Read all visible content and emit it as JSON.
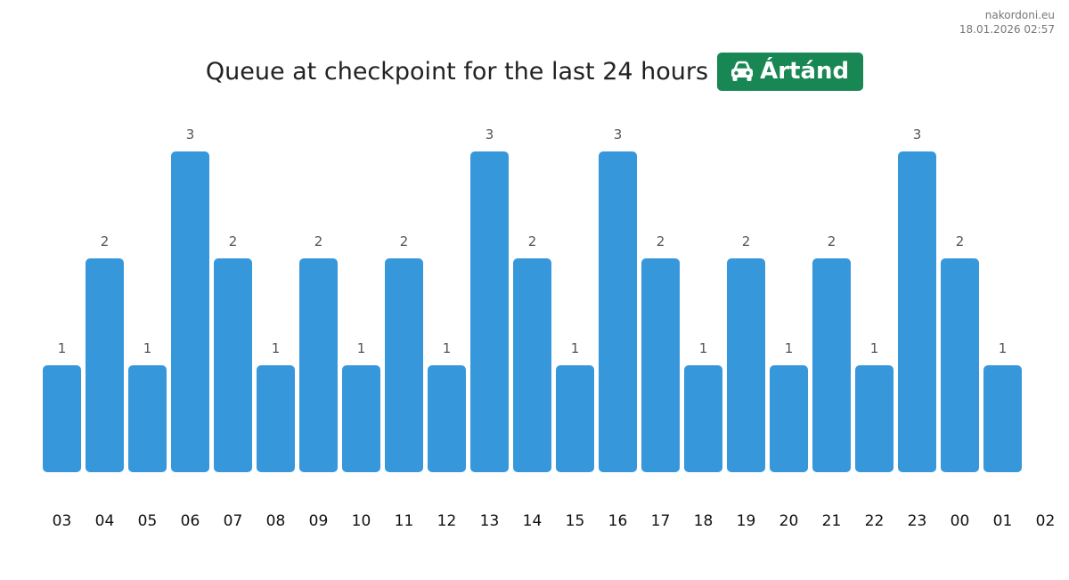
{
  "watermark": {
    "site": "nakordoni.eu",
    "timestamp": "18.01.2026 02:57"
  },
  "header": {
    "title": "Queue at checkpoint for the last 24 hours",
    "badge_label": "Ártánd",
    "badge_icon": "car-icon",
    "badge_color": "#198754"
  },
  "chart_data": {
    "type": "bar",
    "title": "Queue at checkpoint for the last 24 hours",
    "xlabel": "",
    "ylabel": "",
    "ylim": [
      0,
      3
    ],
    "bar_color": "#3797db",
    "grid": false,
    "legend": "none",
    "categories": [
      "03",
      "04",
      "05",
      "06",
      "07",
      "08",
      "09",
      "10",
      "11",
      "12",
      "13",
      "14",
      "15",
      "16",
      "17",
      "18",
      "19",
      "20",
      "21",
      "22",
      "23",
      "00",
      "01"
    ],
    "tick_labels": [
      "03",
      "04",
      "05",
      "06",
      "07",
      "08",
      "09",
      "10",
      "11",
      "12",
      "13",
      "14",
      "15",
      "16",
      "17",
      "18",
      "19",
      "20",
      "21",
      "22",
      "23",
      "00",
      "01",
      "02"
    ],
    "values": [
      1,
      2,
      1,
      3,
      2,
      1,
      2,
      1,
      2,
      1,
      3,
      2,
      1,
      3,
      2,
      1,
      2,
      1,
      2,
      1,
      3,
      2,
      1
    ]
  }
}
